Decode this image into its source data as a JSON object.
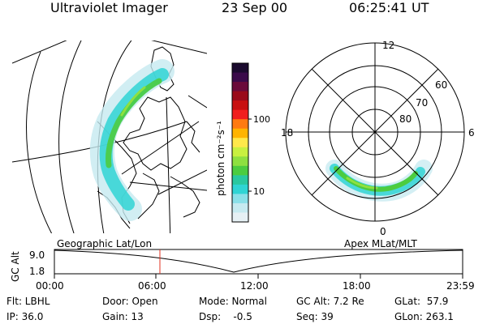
{
  "header": {
    "instrument": "Ultraviolet Imager",
    "date": "23 Sep 00",
    "time": "06:25:41 UT"
  },
  "colorbar": {
    "unit_label": "photon cm⁻²s⁻¹",
    "ticks": [
      "100",
      "10"
    ],
    "colors": [
      "#1a0a2e",
      "#3a0a4a",
      "#6a0a3a",
      "#9a0a1a",
      "#c81010",
      "#f01e1e",
      "#ff7a10",
      "#ffb400",
      "#ffe84a",
      "#c8f040",
      "#8ee040",
      "#4ccc40",
      "#2ac8a0",
      "#30d4d4",
      "#8ae0e8",
      "#c6eaf0",
      "#e6f0f4"
    ]
  },
  "polar_plot": {
    "mlt_labels": {
      "top": "12",
      "left": "18",
      "right": "6",
      "bottom": "0"
    },
    "lat_labels": [
      "60",
      "70",
      "80"
    ]
  },
  "timeline": {
    "left_label": "Geographic Lat/Lon",
    "right_label": "Apex MLat/MLT",
    "axis_label": "GC Alt",
    "y_ticks": [
      "9.0",
      "1.8"
    ],
    "x_ticks": [
      "00:00",
      "06:00",
      "12:00",
      "18:00",
      "23:59"
    ],
    "marker_color": "#e03020"
  },
  "footer": {
    "filter": "Flt: LBHL",
    "ip": "IP: 36.0",
    "door": "Door: Open",
    "gain": "Gain: 13",
    "mode": "Mode: Normal",
    "dsp": "Dsp:    -0.5",
    "gc_alt": "GC Alt: 7.2 Re",
    "seq": "Seq: 39",
    "glat": "GLat:  57.9",
    "glon": "GLon: 263.1"
  }
}
